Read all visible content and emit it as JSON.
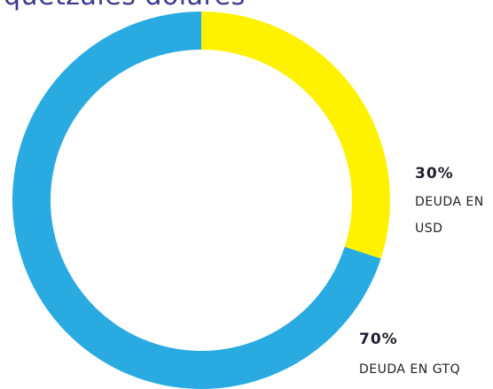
{
  "chart_data": {
    "type": "pie",
    "title": "quetzales dólares",
    "categories": [
      "DEUDA EN USD",
      "DEUDA EN GTQ"
    ],
    "values": [
      30,
      70
    ],
    "value_labels": [
      "30%",
      "70%"
    ],
    "colors": [
      "#fff200",
      "#29abe2"
    ],
    "donut": true
  }
}
